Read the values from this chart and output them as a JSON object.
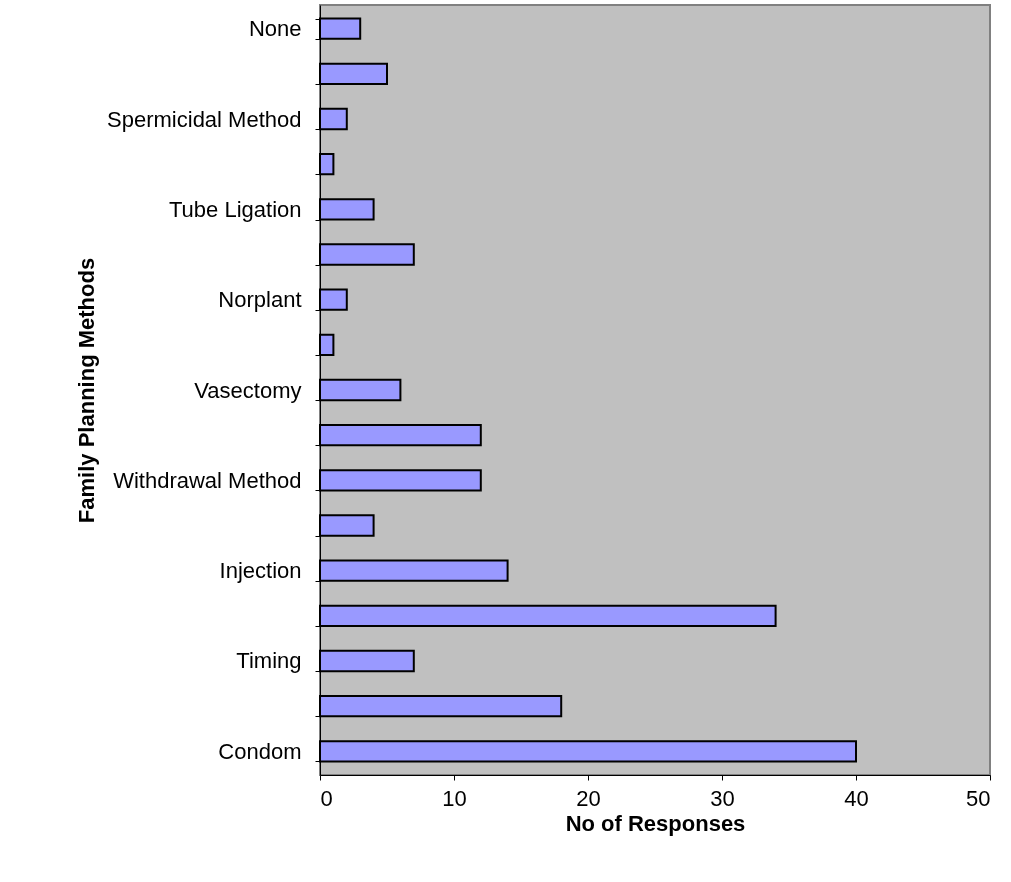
{
  "chart_data": {
    "type": "bar",
    "orientation": "horizontal",
    "categories": [
      "None",
      null,
      "Spermicidal Method",
      null,
      "Tube Ligation",
      null,
      "Norplant",
      null,
      "Vasectomy",
      null,
      "Withdrawal Method",
      null,
      "Injection",
      null,
      "Timing",
      null,
      "Condom"
    ],
    "values": [
      3,
      5,
      2,
      1,
      4,
      7,
      2,
      1,
      6,
      12,
      12,
      4,
      14,
      34,
      7,
      18,
      40
    ],
    "color": "#9999ff",
    "xlabel": "No of Responses",
    "ylabel": "Family Planning Methods",
    "xlim": [
      0,
      50
    ],
    "xticks": [
      0,
      10,
      20,
      30,
      40,
      50
    ]
  }
}
